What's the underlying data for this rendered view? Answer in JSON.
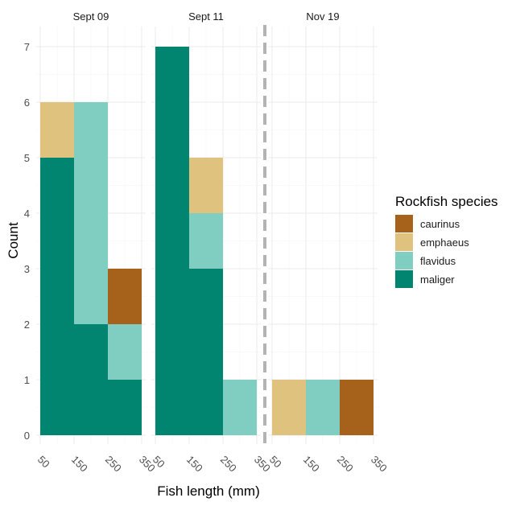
{
  "chart_data": {
    "type": "bar",
    "subtype": "stacked-histogram-faceted",
    "xlabel": "Fish length (mm)",
    "ylabel": "Count",
    "x_ticks": [
      "50",
      "150",
      "250",
      "350"
    ],
    "y_ticks": [
      "0",
      "1",
      "2",
      "3",
      "4",
      "5",
      "6",
      "7"
    ],
    "xlim": [
      50,
      350
    ],
    "ylim": [
      0,
      7.25
    ],
    "bin_edges": [
      50,
      150,
      250,
      350
    ],
    "grid": true,
    "legend": {
      "title": "Rockfish species",
      "position": "right",
      "items": [
        {
          "name": "caurinus",
          "color": "#A6611A"
        },
        {
          "name": "emphaeus",
          "color": "#DFC27D"
        },
        {
          "name": "flavidus",
          "color": "#80CDC1"
        },
        {
          "name": "maliger",
          "color": "#018571"
        }
      ]
    },
    "reference_line": {
      "position": "between Sept 11 and Nov 19",
      "style": "dashed",
      "color": "#b3b3b3"
    },
    "panels": [
      {
        "title": "Sept 09",
        "bins": [
          {
            "x0": 50,
            "x1": 150,
            "stack": {
              "maliger": 5,
              "flavidus": 0,
              "emphaeus": 1,
              "caurinus": 0
            }
          },
          {
            "x0": 150,
            "x1": 250,
            "stack": {
              "maliger": 2,
              "flavidus": 4,
              "emphaeus": 0,
              "caurinus": 0
            }
          },
          {
            "x0": 250,
            "x1": 350,
            "stack": {
              "maliger": 1,
              "flavidus": 1,
              "emphaeus": 0,
              "caurinus": 1
            }
          }
        ]
      },
      {
        "title": "Sept 11",
        "bins": [
          {
            "x0": 50,
            "x1": 150,
            "stack": {
              "maliger": 7,
              "flavidus": 0,
              "emphaeus": 0,
              "caurinus": 0
            }
          },
          {
            "x0": 150,
            "x1": 250,
            "stack": {
              "maliger": 3,
              "flavidus": 1,
              "emphaeus": 1,
              "caurinus": 0
            }
          },
          {
            "x0": 250,
            "x1": 350,
            "stack": {
              "maliger": 0,
              "flavidus": 1,
              "emphaeus": 0,
              "caurinus": 0
            }
          }
        ]
      },
      {
        "title": "Nov 19",
        "bins": [
          {
            "x0": 50,
            "x1": 150,
            "stack": {
              "maliger": 0,
              "flavidus": 0,
              "emphaeus": 1,
              "caurinus": 0
            }
          },
          {
            "x0": 150,
            "x1": 250,
            "stack": {
              "maliger": 0,
              "flavidus": 1,
              "emphaeus": 0,
              "caurinus": 0
            }
          },
          {
            "x0": 250,
            "x1": 350,
            "stack": {
              "maliger": 0,
              "flavidus": 0,
              "emphaeus": 0,
              "caurinus": 1
            }
          }
        ]
      }
    ]
  }
}
